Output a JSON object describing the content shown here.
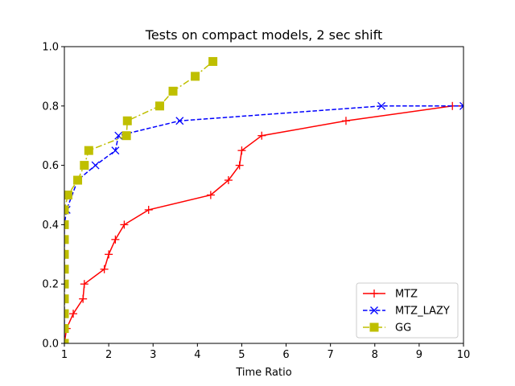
{
  "chart_data": {
    "type": "line",
    "title": "Tests on compact models, 2 sec shift",
    "xlabel": "Time Ratio",
    "ylabel": "",
    "xlim": [
      1,
      10
    ],
    "ylim": [
      0.0,
      1.0
    ],
    "xticks": [
      "1",
      "2",
      "3",
      "4",
      "5",
      "6",
      "7",
      "8",
      "9",
      "10"
    ],
    "yticks": [
      "0.0",
      "0.2",
      "0.4",
      "0.6",
      "0.8",
      "1.0"
    ],
    "grid": false,
    "legend_position": "lower-right",
    "series": [
      {
        "name": "MTZ",
        "color": "#ff0000",
        "linestyle": "solid",
        "marker": "plus",
        "x": [
          1.0,
          1.05,
          1.2,
          1.42,
          1.45,
          1.9,
          2.0,
          2.15,
          2.35,
          2.9,
          4.3,
          4.7,
          4.95,
          5.0,
          5.45,
          7.35,
          9.75,
          10.0
        ],
        "y": [
          0.0,
          0.05,
          0.1,
          0.15,
          0.2,
          0.25,
          0.3,
          0.35,
          0.4,
          0.45,
          0.5,
          0.55,
          0.6,
          0.65,
          0.7,
          0.75,
          0.8,
          0.8
        ]
      },
      {
        "name": "MTZ_LAZY",
        "color": "#0000ff",
        "linestyle": "dashed",
        "marker": "x",
        "x": [
          1.0,
          1.0,
          1.05,
          1.3,
          1.7,
          2.15,
          2.22,
          3.6,
          8.15,
          10.0
        ],
        "y": [
          0.0,
          0.4,
          0.45,
          0.55,
          0.6,
          0.65,
          0.7,
          0.75,
          0.8,
          0.8
        ]
      },
      {
        "name": "GG",
        "color": "#bfbf00",
        "linestyle": "dashdot",
        "marker": "square",
        "x": [
          1.0,
          1.0,
          1.0,
          1.0,
          1.0,
          1.0,
          1.0,
          1.0,
          1.0,
          1.0,
          1.08,
          1.3,
          1.45,
          1.55,
          2.4,
          2.42,
          3.15,
          3.45,
          3.95,
          4.35
        ],
        "y": [
          0.0,
          0.05,
          0.1,
          0.15,
          0.2,
          0.25,
          0.3,
          0.35,
          0.4,
          0.45,
          0.5,
          0.55,
          0.6,
          0.65,
          0.7,
          0.75,
          0.8,
          0.85,
          0.9,
          0.95
        ]
      }
    ]
  }
}
